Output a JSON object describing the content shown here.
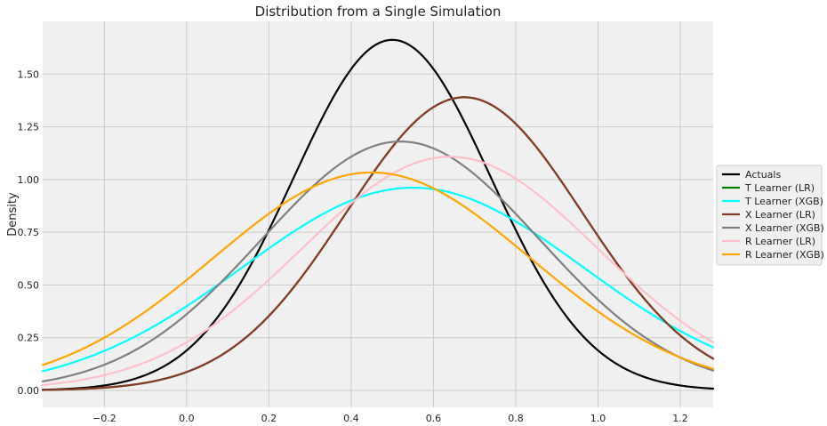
{
  "chart_data": {
    "type": "line",
    "title": "Distribution from a Single Simulation",
    "xlabel": "",
    "ylabel": "Density",
    "xlim": [
      -0.35,
      1.28
    ],
    "ylim": [
      -0.08,
      1.75
    ],
    "x_ticks": [
      -0.2,
      0.0,
      0.2,
      0.4,
      0.6,
      0.8,
      1.0,
      1.2
    ],
    "x_tick_labels": [
      "−0.2",
      "0.0",
      "0.2",
      "0.4",
      "0.6",
      "0.8",
      "1.0",
      "1.2"
    ],
    "y_ticks": [
      0.0,
      0.25,
      0.5,
      0.75,
      1.0,
      1.25,
      1.5
    ],
    "y_tick_labels": [
      "0.00",
      "0.25",
      "0.50",
      "0.75",
      "1.00",
      "1.25",
      "1.50"
    ],
    "grid": true,
    "legend_position": "center-right-outside",
    "series": [
      {
        "name": "Actuals",
        "color": "#000000",
        "mean": 0.5,
        "sd": 0.24
      },
      {
        "name": "T Learner (LR)",
        "color": "#008000",
        "mean": 0.675,
        "sd": 0.287
      },
      {
        "name": "T Learner (XGB)",
        "color": "#00ffff",
        "mean": 0.55,
        "sd": 0.415
      },
      {
        "name": "X Learner (LR)",
        "color": "#8b3a2a",
        "mean": 0.675,
        "sd": 0.287
      },
      {
        "name": "X Learner (XGB)",
        "color": "#808080",
        "mean": 0.52,
        "sd": 0.338
      },
      {
        "name": "R Learner (LR)",
        "color": "#ffc0cb",
        "mean": 0.64,
        "sd": 0.36
      },
      {
        "name": "R Learner (XGB)",
        "color": "#ffa500",
        "mean": 0.45,
        "sd": 0.386
      }
    ]
  }
}
